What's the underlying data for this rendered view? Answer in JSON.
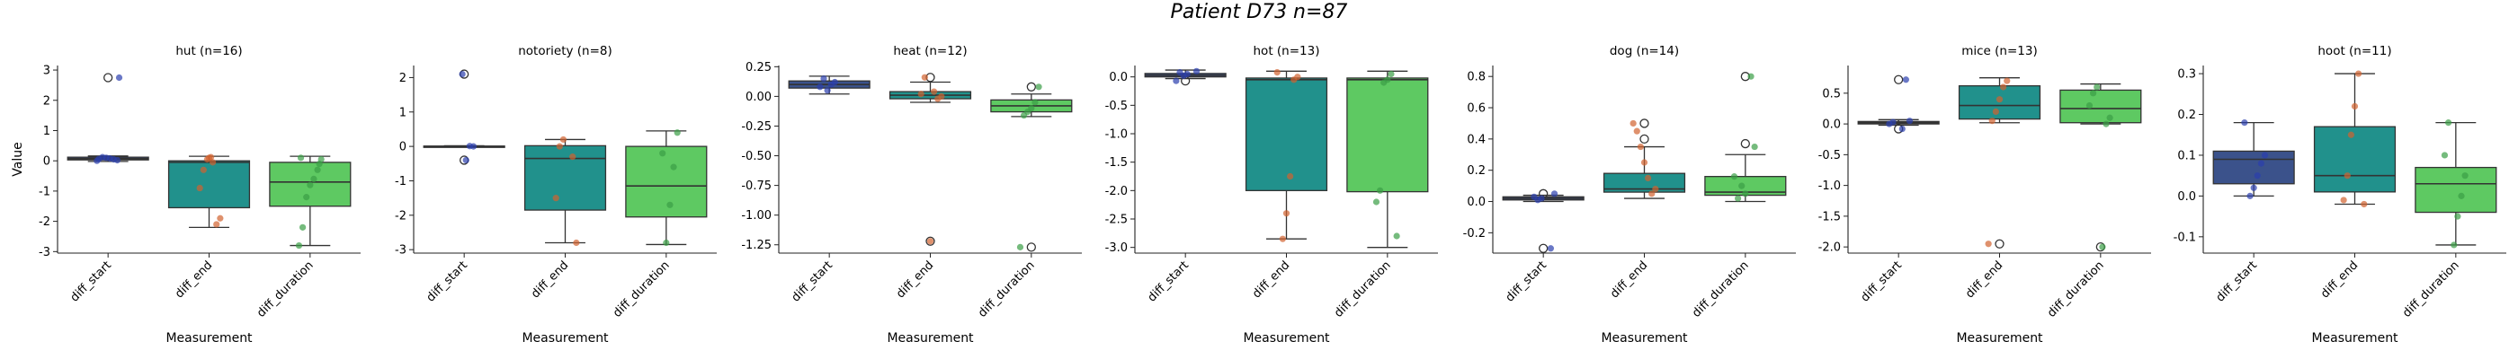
{
  "figure": {
    "title": "Patient D73 n=87"
  },
  "chart_data": [
    {
      "type": "box",
      "title": "hut (n=16)",
      "xlabel": "Measurement",
      "ylabel": "Value",
      "categories": [
        "diff_start",
        "diff_end",
        "diff_duration"
      ],
      "ylim": [
        -3.05,
        3.15
      ],
      "yticks": [
        -3,
        -2,
        -1,
        0,
        1,
        2,
        3
      ],
      "boxes": [
        {
          "q1": 0.03,
          "median": 0.07,
          "q3": 0.12,
          "whisker_low": -0.02,
          "whisker_high": 0.16,
          "outliers": [
            2.75
          ]
        },
        {
          "q1": -1.55,
          "median": -0.05,
          "q3": 0.0,
          "whisker_low": -2.2,
          "whisker_high": 0.15,
          "outliers": []
        },
        {
          "q1": -1.5,
          "median": -0.7,
          "q3": -0.05,
          "whisker_low": -2.8,
          "whisker_high": 0.15,
          "outliers": []
        }
      ],
      "points": [
        [
          0.0,
          0.02,
          0.05,
          0.08,
          0.1,
          0.12,
          0.06,
          2.75
        ],
        [
          0.12,
          0.05,
          -0.3,
          -0.9,
          -1.9,
          -2.1,
          -0.05,
          0.1
        ],
        [
          0.1,
          0.05,
          -0.3,
          -0.6,
          -0.8,
          -1.2,
          -2.2,
          -2.8,
          -0.1
        ]
      ]
    },
    {
      "type": "box",
      "title": "notoriety (n=8)",
      "xlabel": "Measurement",
      "categories": [
        "diff_start",
        "diff_end",
        "diff_duration"
      ],
      "ylim": [
        -3.1,
        2.35
      ],
      "yticks": [
        -3,
        -2,
        -1,
        0,
        1,
        2
      ],
      "boxes": [
        {
          "q1": 0.0,
          "median": 0.0,
          "q3": 0.01,
          "whisker_low": -0.01,
          "whisker_high": 0.02,
          "outliers": [
            2.1,
            -0.4
          ]
        },
        {
          "q1": -1.85,
          "median": -0.35,
          "q3": 0.02,
          "whisker_low": -2.8,
          "whisker_high": 0.2,
          "outliers": []
        },
        {
          "q1": -2.05,
          "median": -1.15,
          "q3": 0.0,
          "whisker_low": -2.85,
          "whisker_high": 0.45,
          "outliers": []
        }
      ],
      "points": [
        [
          0.0,
          0.01,
          -0.4,
          2.1
        ],
        [
          0.2,
          0.0,
          -1.5,
          -2.8,
          -0.3
        ],
        [
          0.4,
          -0.6,
          -1.7,
          -2.8,
          -0.2
        ]
      ]
    },
    {
      "type": "box",
      "title": "heat (n=12)",
      "xlabel": "Measurement",
      "categories": [
        "diff_start",
        "diff_end",
        "diff_duration"
      ],
      "ylim": [
        -1.32,
        0.26
      ],
      "yticks": [
        -1.25,
        -1.0,
        -0.75,
        -0.5,
        -0.25,
        0.0,
        0.25
      ],
      "ytick_labels": [
        "-1.25",
        "-1.00",
        "-0.75",
        "-0.50",
        "-0.25",
        "0.00",
        "0.25"
      ],
      "boxes": [
        {
          "q1": 0.07,
          "median": 0.1,
          "q3": 0.13,
          "whisker_low": 0.02,
          "whisker_high": 0.17,
          "outliers": []
        },
        {
          "q1": -0.02,
          "median": 0.01,
          "q3": 0.04,
          "whisker_low": -0.05,
          "whisker_high": 0.12,
          "outliers": [
            0.16,
            -1.22
          ]
        },
        {
          "q1": -0.13,
          "median": -0.08,
          "q3": -0.03,
          "whisker_low": -0.17,
          "whisker_high": 0.02,
          "outliers": [
            0.08,
            -1.27
          ]
        }
      ],
      "points": [
        [
          0.12,
          0.1,
          0.05,
          0.15,
          0.08
        ],
        [
          0.16,
          0.02,
          0.0,
          -0.02,
          0.04,
          -1.22
        ],
        [
          0.08,
          -0.05,
          -0.1,
          -0.13,
          -0.16,
          -1.27
        ]
      ]
    },
    {
      "type": "box",
      "title": "hot (n=13)",
      "xlabel": "Measurement",
      "categories": [
        "diff_start",
        "diff_end",
        "diff_duration"
      ],
      "ylim": [
        -3.1,
        0.2
      ],
      "yticks": [
        -3.0,
        -2.5,
        -2.0,
        -1.5,
        -1.0,
        -0.5,
        0.0
      ],
      "ytick_labels": [
        "-3.0",
        "-2.5",
        "-2.0",
        "-1.5",
        "-1.0",
        "-0.5",
        "0.0"
      ],
      "boxes": [
        {
          "q1": 0.0,
          "median": 0.03,
          "q3": 0.06,
          "whisker_low": -0.03,
          "whisker_high": 0.12,
          "outliers": [
            -0.07
          ]
        },
        {
          "q1": -2.0,
          "median": -0.05,
          "q3": -0.02,
          "whisker_low": -2.85,
          "whisker_high": 0.1,
          "outliers": []
        },
        {
          "q1": -2.02,
          "median": -0.05,
          "q3": -0.02,
          "whisker_low": -3.0,
          "whisker_high": 0.1,
          "outliers": []
        }
      ],
      "points": [
        [
          0.05,
          0.02,
          0.08,
          -0.07,
          0.1
        ],
        [
          0.08,
          0.0,
          -0.05,
          -1.75,
          -2.4,
          -2.85
        ],
        [
          0.05,
          -0.05,
          -0.1,
          -2.0,
          -2.2,
          -2.8
        ]
      ]
    },
    {
      "type": "box",
      "title": "dog (n=14)",
      "xlabel": "Measurement",
      "categories": [
        "diff_start",
        "diff_end",
        "diff_duration"
      ],
      "ylim": [
        -0.33,
        0.87
      ],
      "yticks": [
        -0.2,
        0.0,
        0.2,
        0.4,
        0.6,
        0.8
      ],
      "ytick_labels": [
        "-0.2",
        "0.0",
        "0.2",
        "0.4",
        "0.6",
        "0.8"
      ],
      "boxes": [
        {
          "q1": 0.01,
          "median": 0.02,
          "q3": 0.03,
          "whisker_low": 0.0,
          "whisker_high": 0.04,
          "outliers": [
            0.05,
            -0.3
          ]
        },
        {
          "q1": 0.06,
          "median": 0.08,
          "q3": 0.18,
          "whisker_low": 0.02,
          "whisker_high": 0.35,
          "outliers": [
            0.5,
            0.4
          ]
        },
        {
          "q1": 0.04,
          "median": 0.06,
          "q3": 0.16,
          "whisker_low": 0.0,
          "whisker_high": 0.3,
          "outliers": [
            0.8,
            0.37
          ]
        }
      ],
      "points": [
        [
          0.02,
          0.01,
          0.03,
          0.05,
          -0.3
        ],
        [
          0.08,
          0.05,
          0.15,
          0.25,
          0.35,
          0.45,
          0.5
        ],
        [
          0.05,
          0.1,
          0.02,
          0.16,
          0.35,
          0.8
        ]
      ]
    },
    {
      "type": "box",
      "title": "mice (n=13)",
      "xlabel": "Measurement",
      "categories": [
        "diff_start",
        "diff_end",
        "diff_duration"
      ],
      "ylim": [
        -2.1,
        0.95
      ],
      "yticks": [
        -2.0,
        -1.5,
        -1.0,
        -0.5,
        0.0,
        0.5
      ],
      "ytick_labels": [
        "-2.0",
        "-1.5",
        "-1.0",
        "-0.5",
        "0.0",
        "0.5"
      ],
      "boxes": [
        {
          "q1": 0.0,
          "median": 0.02,
          "q3": 0.04,
          "whisker_low": -0.02,
          "whisker_high": 0.07,
          "outliers": [
            0.72,
            -0.08
          ]
        },
        {
          "q1": 0.08,
          "median": 0.3,
          "q3": 0.62,
          "whisker_low": 0.02,
          "whisker_high": 0.75,
          "outliers": [
            -1.95
          ]
        },
        {
          "q1": 0.02,
          "median": 0.25,
          "q3": 0.55,
          "whisker_low": 0.0,
          "whisker_high": 0.65,
          "outliers": [
            -2.0
          ]
        }
      ],
      "points": [
        [
          0.03,
          0.0,
          0.05,
          0.72,
          -0.08
        ],
        [
          0.7,
          0.6,
          0.4,
          0.2,
          0.05,
          -1.95
        ],
        [
          0.6,
          0.5,
          0.3,
          0.1,
          0.0,
          -2.0
        ]
      ]
    },
    {
      "type": "box",
      "title": "hoot (n=11)",
      "xlabel": "Measurement",
      "categories": [
        "diff_start",
        "diff_end",
        "diff_duration"
      ],
      "ylim": [
        -0.14,
        0.32
      ],
      "yticks": [
        -0.1,
        0.0,
        0.1,
        0.2,
        0.3
      ],
      "ytick_labels": [
        "-0.1",
        "0.0",
        "0.1",
        "0.2",
        "0.3"
      ],
      "boxes": [
        {
          "q1": 0.03,
          "median": 0.09,
          "q3": 0.11,
          "whisker_low": 0.0,
          "whisker_high": 0.18,
          "outliers": []
        },
        {
          "q1": 0.01,
          "median": 0.05,
          "q3": 0.17,
          "whisker_low": -0.02,
          "whisker_high": 0.3,
          "outliers": []
        },
        {
          "q1": -0.04,
          "median": 0.03,
          "q3": 0.07,
          "whisker_low": -0.12,
          "whisker_high": 0.18,
          "outliers": []
        }
      ],
      "points": [
        [
          0.18,
          0.1,
          0.08,
          0.05,
          0.02,
          0.0
        ],
        [
          0.3,
          0.22,
          0.15,
          0.05,
          -0.01,
          -0.02
        ],
        [
          0.18,
          0.1,
          0.05,
          0.0,
          -0.05,
          -0.12
        ]
      ]
    }
  ],
  "colors": {
    "box_fills": [
      "#3b528b",
      "#21918c",
      "#5ec962"
    ],
    "point_colors": [
      "#2b3fae",
      "#d2622f",
      "#3a9e46"
    ],
    "axis": "#222222",
    "box_edge": "#333333"
  }
}
